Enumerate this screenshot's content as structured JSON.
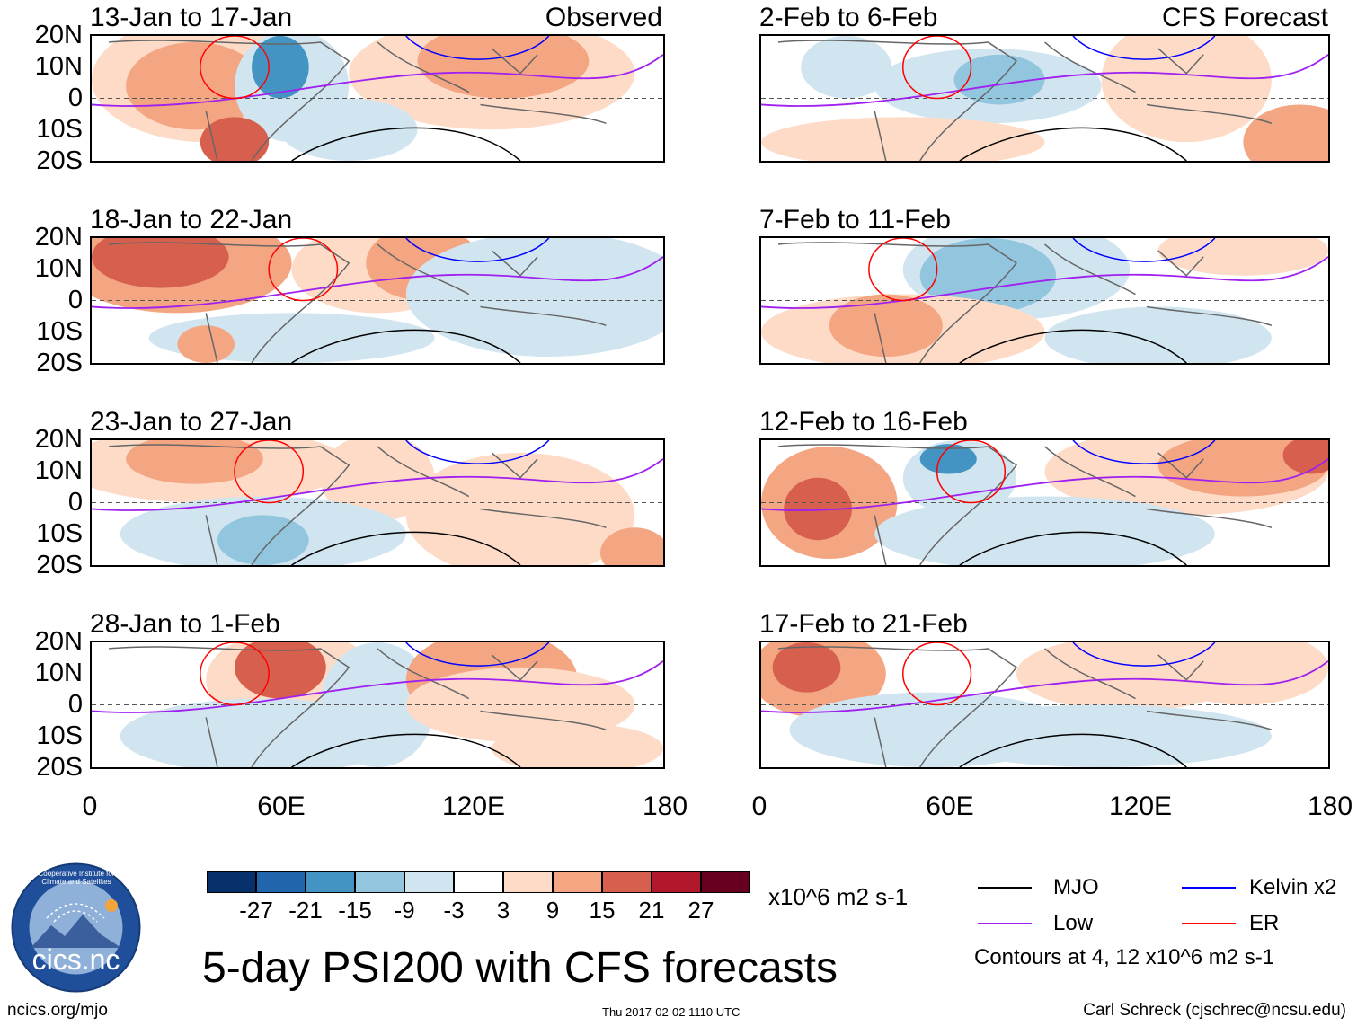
{
  "panels": [
    {
      "period": "13-Jan to 17-Jan",
      "label": "Observed"
    },
    {
      "period": "2-Feb to 6-Feb",
      "label": "CFS Forecast"
    },
    {
      "period": "18-Jan to 22-Jan",
      "label": ""
    },
    {
      "period": "7-Feb to 11-Feb",
      "label": ""
    },
    {
      "period": "23-Jan to 27-Jan",
      "label": ""
    },
    {
      "period": "12-Feb to 16-Feb",
      "label": ""
    },
    {
      "period": "28-Jan to 1-Feb",
      "label": ""
    },
    {
      "period": "17-Feb to 21-Feb",
      "label": ""
    }
  ],
  "lat_ticks": [
    "20N",
    "10N",
    "0",
    "10S",
    "20S"
  ],
  "lon_ticks": [
    "0",
    "60E",
    "120E",
    "180"
  ],
  "colorbar": {
    "colors": [
      "#08306b",
      "#2166ac",
      "#4393c3",
      "#92c5de",
      "#d1e5f0",
      "#ffffff",
      "#fddbc7",
      "#f4a582",
      "#d6604d",
      "#b2182b",
      "#67001f"
    ],
    "labels": [
      "-27",
      "-21",
      "-15",
      "-9",
      "-3",
      "3",
      "9",
      "15",
      "21",
      "27"
    ],
    "units": "x10^6 m2 s-1"
  },
  "legend": {
    "mjo": {
      "label": "MJO",
      "color": "#000000"
    },
    "kelvin": {
      "label": "Kelvin x2",
      "color": "#0000ff"
    },
    "low": {
      "label": "Low",
      "color": "#a020f0"
    },
    "er": {
      "label": "ER",
      "color": "#ff0000"
    },
    "contours_note": "Contours at 4, 12 x10^6 m2 s-1"
  },
  "logo": {
    "text": "cics.nc",
    "ring_text": "Cooperative Institute for Climate and Satellites"
  },
  "main_title": "5-day PSI200 with CFS forecasts",
  "footer": {
    "url": "ncics.org/mjo",
    "timestamp": "Thu 2017-02-02 1110 UTC",
    "author": "Carl Schreck (cjschrec@ncsu.edu)"
  }
}
